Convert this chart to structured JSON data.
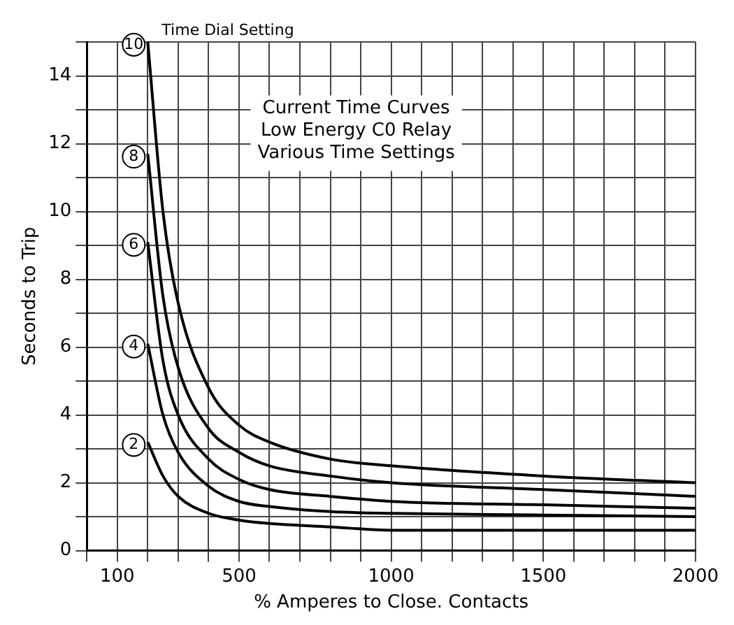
{
  "chart_data": {
    "type": "line",
    "title": "Current Time Curves\nLow Energy C0 Relay\nVarious Time Settings",
    "xlabel": "% Amperes to Close. Contacts",
    "ylabel": "Seconds to Trip",
    "annotations": [
      "Time Dial Setting"
    ],
    "x": [
      200,
      250,
      300,
      400,
      500,
      600,
      800,
      1000,
      1500,
      2000
    ],
    "series": [
      {
        "name": "10",
        "color": "#000000",
        "values": [
          15,
          10,
          7.3,
          4.8,
          3.7,
          3.2,
          2.7,
          2.5,
          2.2,
          2.0
        ]
      },
      {
        "name": "8",
        "color": "#000000",
        "values": [
          11.7,
          7.5,
          5.4,
          3.6,
          2.9,
          2.5,
          2.2,
          2.0,
          1.8,
          1.6
        ]
      },
      {
        "name": "6",
        "color": "#000000",
        "values": [
          9.1,
          5.6,
          4.0,
          2.7,
          2.1,
          1.8,
          1.6,
          1.45,
          1.35,
          1.25
        ]
      },
      {
        "name": "4",
        "color": "#000000",
        "values": [
          6.1,
          4.0,
          2.9,
          1.9,
          1.45,
          1.3,
          1.15,
          1.1,
          1.05,
          1.0
        ]
      },
      {
        "name": "2",
        "color": "#000000",
        "values": [
          3.2,
          2.2,
          1.6,
          1.1,
          0.9,
          0.8,
          0.7,
          0.6,
          0.6,
          0.6
        ]
      }
    ],
    "xlim": [
      0,
      2000
    ],
    "xticks": [
      {
        "value": 0,
        "label": null
      },
      100,
      {
        "value": 200,
        "label": null
      },
      {
        "value": 300,
        "label": null
      },
      {
        "value": 400,
        "label": null
      },
      500,
      {
        "value": 600,
        "label": null
      },
      {
        "value": 700,
        "label": null
      },
      {
        "value": 800,
        "label": null
      },
      {
        "value": 900,
        "label": null
      },
      1000,
      {
        "value": 1100,
        "label": null
      },
      {
        "value": 1200,
        "label": null
      },
      {
        "value": 1300,
        "label": null
      },
      {
        "value": 1400,
        "label": null
      },
      1500,
      {
        "value": 1600,
        "label": null
      },
      {
        "value": 1700,
        "label": null
      },
      {
        "value": 1800,
        "label": null
      },
      {
        "value": 1900,
        "label": null
      },
      2000
    ],
    "ylim": [
      0,
      15
    ],
    "yticks": [
      0,
      {
        "value": 1,
        "label": null
      },
      2,
      {
        "value": 3,
        "label": null
      },
      4,
      {
        "value": 5,
        "label": null
      },
      6,
      {
        "value": 7,
        "label": null
      },
      8,
      {
        "value": 9,
        "label": null
      },
      10,
      {
        "value": 11,
        "label": null
      },
      12,
      {
        "value": 13,
        "label": null
      },
      14,
      {
        "value": 15,
        "label": null
      }
    ],
    "grid": true,
    "marker": "none",
    "line_style": "solid"
  }
}
